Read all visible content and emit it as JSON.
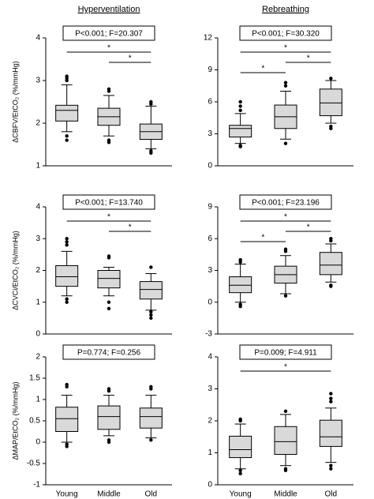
{
  "chart_data": [
    {
      "type": "box",
      "title": "Hyperventilation",
      "y_label": "ΔCBFV/EtCO₂ (%/mmHg)",
      "annotation": "P<0.001; F=20.307",
      "ylim": [
        1,
        4
      ],
      "yticks": [
        1,
        2,
        3,
        4
      ],
      "color": "#d9d9d9",
      "boxes": [
        {
          "whislo": 1.8,
          "q1": 2.05,
          "med": 2.3,
          "q3": 2.42,
          "whishi": 2.9,
          "fliers": [
            3.1,
            3.05,
            3.0,
            1.7,
            1.6
          ]
        },
        {
          "whislo": 1.7,
          "q1": 1.95,
          "med": 2.15,
          "q3": 2.35,
          "whishi": 2.65,
          "fliers": [
            2.8,
            2.75,
            1.6,
            1.55
          ]
        },
        {
          "whislo": 1.4,
          "q1": 1.62,
          "med": 1.8,
          "q3": 1.98,
          "whishi": 2.4,
          "fliers": [
            2.5,
            2.45,
            1.35,
            1.3
          ]
        }
      ],
      "comparisons": [
        {
          "from": 0,
          "to": 2,
          "label": "*"
        },
        {
          "from": 1,
          "to": 2,
          "label": "*"
        }
      ]
    },
    {
      "type": "box",
      "title": "Rebreathing",
      "annotation": "P<0.001; F=30.320",
      "ylim": [
        0,
        12
      ],
      "yticks": [
        0,
        3,
        6,
        9,
        12
      ],
      "color": "#d9d9d9",
      "boxes": [
        {
          "whislo": 2.1,
          "q1": 2.7,
          "med": 3.5,
          "q3": 3.8,
          "whishi": 4.9,
          "fliers": [
            6.0,
            5.6,
            5.2,
            1.9,
            1.8
          ]
        },
        {
          "whislo": 2.5,
          "q1": 3.5,
          "med": 4.6,
          "q3": 5.7,
          "whishi": 7.0,
          "fliers": [
            7.8,
            7.5,
            2.1
          ]
        },
        {
          "whislo": 4.0,
          "q1": 4.7,
          "med": 5.9,
          "q3": 7.2,
          "whishi": 8.0,
          "fliers": [
            8.2,
            3.7,
            3.5
          ]
        }
      ],
      "comparisons": [
        {
          "from": 0,
          "to": 2,
          "label": "*"
        },
        {
          "from": 1,
          "to": 2,
          "label": "*"
        },
        {
          "from": 0,
          "to": 1,
          "label": "*"
        }
      ]
    },
    {
      "type": "box",
      "y_label": "ΔCVCi/EtCO₂ (%/mmHg)",
      "annotation": "P<0.001; F=13.740",
      "ylim": [
        0,
        4
      ],
      "yticks": [
        0,
        1,
        2,
        3,
        4
      ],
      "color": "#d9d9d9",
      "boxes": [
        {
          "whislo": 1.2,
          "q1": 1.5,
          "med": 1.8,
          "q3": 2.15,
          "whishi": 2.6,
          "fliers": [
            3.0,
            2.9,
            2.8,
            1.1,
            1.0
          ]
        },
        {
          "whislo": 1.2,
          "q1": 1.45,
          "med": 1.75,
          "q3": 2.0,
          "whishi": 2.1,
          "fliers": [
            2.45,
            2.4,
            1.0,
            0.8
          ]
        },
        {
          "whislo": 0.75,
          "q1": 1.1,
          "med": 1.4,
          "q3": 1.65,
          "whishi": 1.9,
          "fliers": [
            2.1,
            0.7,
            0.6,
            0.5
          ]
        }
      ],
      "comparisons": [
        {
          "from": 0,
          "to": 2,
          "label": "*"
        },
        {
          "from": 1,
          "to": 2,
          "label": "*"
        }
      ]
    },
    {
      "type": "box",
      "annotation": "P<0.001; F=23.196",
      "ylim": [
        -3,
        9
      ],
      "yticks": [
        -3,
        0,
        3,
        6,
        9
      ],
      "color": "#d9d9d9",
      "boxes": [
        {
          "whislo": 0.0,
          "q1": 0.9,
          "med": 1.6,
          "q3": 2.4,
          "whishi": 3.6,
          "fliers": [
            4.0,
            3.8,
            -0.2,
            -0.4
          ]
        },
        {
          "whislo": 0.8,
          "q1": 1.8,
          "med": 2.6,
          "q3": 3.4,
          "whishi": 4.4,
          "fliers": [
            5.0,
            4.8,
            0.6
          ]
        },
        {
          "whislo": 1.9,
          "q1": 2.6,
          "med": 3.5,
          "q3": 4.7,
          "whishi": 5.5,
          "fliers": [
            6.0,
            5.8,
            1.6,
            1.5
          ]
        }
      ],
      "comparisons": [
        {
          "from": 0,
          "to": 2,
          "label": "*"
        },
        {
          "from": 1,
          "to": 2,
          "label": "*"
        },
        {
          "from": 0,
          "to": 1,
          "label": "*"
        }
      ]
    },
    {
      "type": "box",
      "y_label": "ΔMAP/EtCO₂ (%/mmHg)",
      "annotation": "P=0.774; F=0.256",
      "categories": [
        "Young",
        "Middle",
        "Old"
      ],
      "ylim": [
        -1,
        2
      ],
      "yticks": [
        -1,
        -0.5,
        0,
        0.5,
        1,
        1.5,
        2
      ],
      "color": "#d9d9d9",
      "boxes": [
        {
          "whislo": 0.0,
          "q1": 0.25,
          "med": 0.55,
          "q3": 0.82,
          "whishi": 1.1,
          "fliers": [
            1.35,
            1.3,
            -0.05,
            -0.1
          ]
        },
        {
          "whislo": 0.15,
          "q1": 0.3,
          "med": 0.6,
          "q3": 0.85,
          "whishi": 1.1,
          "fliers": [
            1.25,
            1.2,
            0.05,
            0.0
          ]
        },
        {
          "whislo": 0.1,
          "q1": 0.33,
          "med": 0.6,
          "q3": 0.8,
          "whishi": 1.1,
          "fliers": [
            1.3,
            1.25,
            0.05
          ]
        }
      ],
      "comparisons": []
    },
    {
      "type": "box",
      "annotation": "P=0.009; F=4.911",
      "categories": [
        "Young",
        "Middle",
        "Old"
      ],
      "ylim": [
        0,
        4
      ],
      "yticks": [
        0,
        1,
        2,
        3,
        4
      ],
      "color": "#d9d9d9",
      "boxes": [
        {
          "whislo": 0.5,
          "q1": 0.85,
          "med": 1.1,
          "q3": 1.52,
          "whishi": 1.9,
          "fliers": [
            2.05,
            2.0,
            0.45,
            0.35
          ]
        },
        {
          "whislo": 0.6,
          "q1": 0.95,
          "med": 1.35,
          "q3": 1.82,
          "whishi": 2.2,
          "fliers": [
            2.3,
            0.5,
            0.45
          ]
        },
        {
          "whislo": 0.7,
          "q1": 1.2,
          "med": 1.5,
          "q3": 2.02,
          "whishi": 2.4,
          "fliers": [
            2.85,
            2.7,
            2.6,
            0.6,
            0.5
          ]
        }
      ],
      "comparisons": [
        {
          "from": 0,
          "to": 2,
          "label": "*"
        }
      ]
    }
  ]
}
